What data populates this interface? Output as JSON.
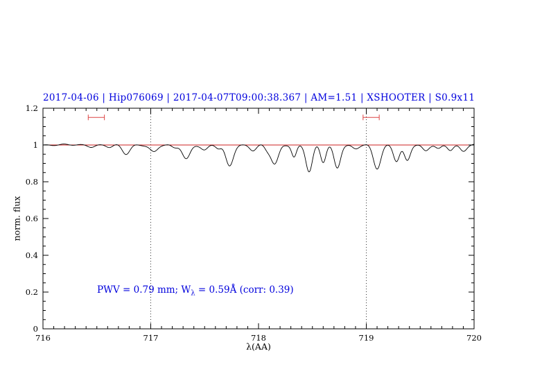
{
  "title": "2017-04-06 | Hip076069 | 2017-04-07T09:00:38.367 | AM=1.51 | XSHOOTER | S0.9x11",
  "colors": {
    "title_text": "#0000dd",
    "annotation_text": "#0000dd",
    "continuum_line": "#cc2222",
    "measurement_marker": "#dd4444",
    "spectrum_line": "#000000",
    "axis": "#000000"
  },
  "annotation": {
    "pre": "PWV = 0.79 mm; W",
    "sub": "λ",
    "post": " = 0.59Å (corr: 0.39)"
  },
  "chart_data": {
    "type": "line",
    "title": "2017-04-06 | Hip076069 | 2017-04-07T09:00:38.367 | AM=1.51 | XSHOOTER | S0.9x11",
    "xlabel": "λ(AA)",
    "ylabel": "norm. flux",
    "xlim": [
      716,
      720
    ],
    "ylim": [
      0,
      1.2
    ],
    "x_ticks": [
      {
        "v": 716,
        "label": "716"
      },
      {
        "v": 717,
        "label": "717"
      },
      {
        "v": 718,
        "label": "718"
      },
      {
        "v": 719,
        "label": "719"
      },
      {
        "v": 720,
        "label": "720"
      }
    ],
    "y_ticks": [
      {
        "v": 0,
        "label": "0"
      },
      {
        "v": 0.2,
        "label": "0.2"
      },
      {
        "v": 0.4,
        "label": "0.4"
      },
      {
        "v": 0.6,
        "label": "0.6"
      },
      {
        "v": 0.8,
        "label": "0.8"
      },
      {
        "v": 1,
        "label": "1"
      },
      {
        "v": 1.2,
        "label": "1.2"
      }
    ],
    "x_minor_step": 0.1,
    "y_minor_step": 0.05,
    "grid": "off",
    "legend": "none",
    "dotted_reference_lines_x": [
      717,
      719
    ],
    "continuum_y": 1.0,
    "measurement_markers": [
      {
        "x1": 716.42,
        "x2": 716.57,
        "y": 1.15
      },
      {
        "x1": 718.97,
        "x2": 719.12,
        "y": 1.15
      }
    ],
    "spectrum": {
      "baseline": 1.0,
      "absorption_lines": [
        {
          "c": 716.45,
          "d": 0.008,
          "w": 0.03
        },
        {
          "c": 716.62,
          "d": 0.012,
          "w": 0.03
        },
        {
          "c": 716.77,
          "d": 0.05,
          "w": 0.035
        },
        {
          "c": 717.03,
          "d": 0.038,
          "w": 0.035
        },
        {
          "c": 717.22,
          "d": 0.018,
          "w": 0.03
        },
        {
          "c": 717.33,
          "d": 0.075,
          "w": 0.035
        },
        {
          "c": 717.5,
          "d": 0.028,
          "w": 0.03
        },
        {
          "c": 717.63,
          "d": 0.02,
          "w": 0.025
        },
        {
          "c": 717.73,
          "d": 0.115,
          "w": 0.035
        },
        {
          "c": 717.95,
          "d": 0.028,
          "w": 0.03
        },
        {
          "c": 718.08,
          "d": 0.025,
          "w": 0.025
        },
        {
          "c": 718.15,
          "d": 0.105,
          "w": 0.035
        },
        {
          "c": 718.33,
          "d": 0.065,
          "w": 0.022
        },
        {
          "c": 718.47,
          "d": 0.145,
          "w": 0.03
        },
        {
          "c": 718.6,
          "d": 0.095,
          "w": 0.025
        },
        {
          "c": 718.73,
          "d": 0.125,
          "w": 0.03
        },
        {
          "c": 718.9,
          "d": 0.02,
          "w": 0.03
        },
        {
          "c": 719.1,
          "d": 0.13,
          "w": 0.035
        },
        {
          "c": 719.28,
          "d": 0.085,
          "w": 0.028
        },
        {
          "c": 719.38,
          "d": 0.085,
          "w": 0.028
        },
        {
          "c": 719.55,
          "d": 0.035,
          "w": 0.03
        },
        {
          "c": 719.67,
          "d": 0.02,
          "w": 0.025
        },
        {
          "c": 719.78,
          "d": 0.025,
          "w": 0.025
        },
        {
          "c": 719.9,
          "d": 0.035,
          "w": 0.03
        }
      ]
    }
  }
}
